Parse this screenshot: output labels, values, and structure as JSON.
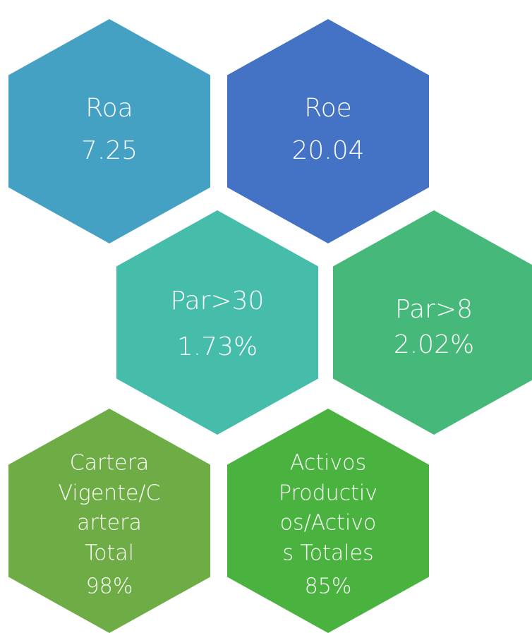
{
  "hexagons": [
    {
      "label": [
        "Roa"
      ],
      "value": "7.25",
      "color": "#44a1c3"
    },
    {
      "label": [
        "Roe"
      ],
      "value": "20.04",
      "color": "#4472c4"
    },
    {
      "label": [
        "Par>30"
      ],
      "value": "1.73%",
      "color": "#45bdaa"
    },
    {
      "label": [
        "Par>8"
      ],
      "value": "2.02%",
      "color": "#46b87a"
    },
    {
      "label": [
        "Cartera",
        "Vigente/C",
        "artera",
        "Total"
      ],
      "value": "98%",
      "color": "#6eac46"
    },
    {
      "label": [
        "Activos",
        "Productiv",
        "os/Activo",
        "s Totales"
      ],
      "value": "85%",
      "color": "#4ab340"
    }
  ]
}
